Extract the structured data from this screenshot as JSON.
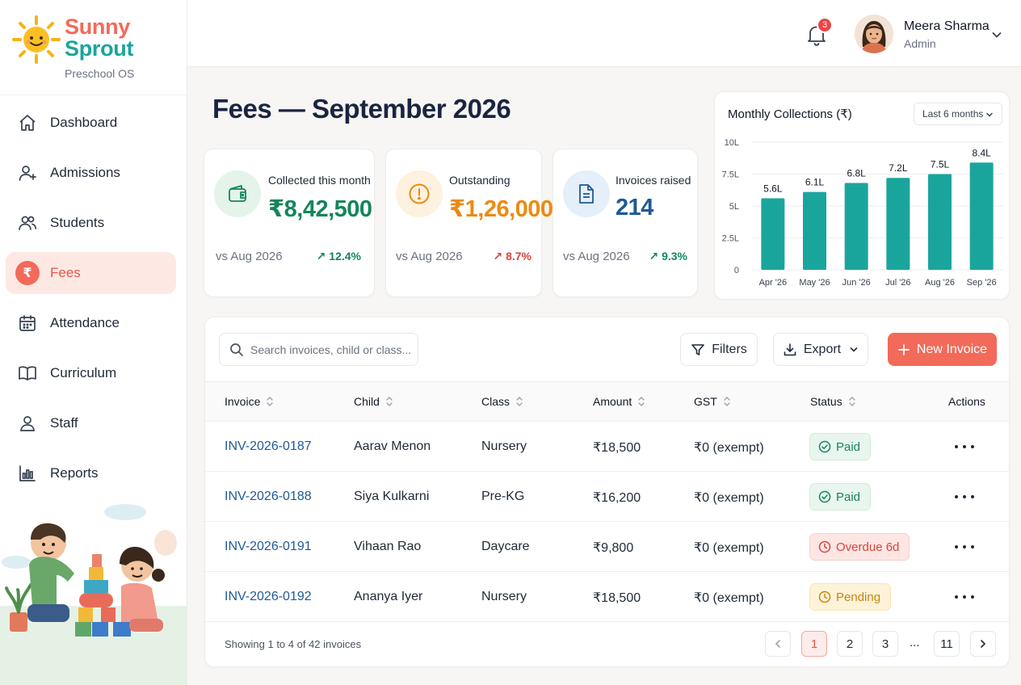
{
  "brand": {
    "name_line1": "Sunny",
    "name_line2": "Sprout",
    "subtitle": "Preschool OS"
  },
  "sidebar": {
    "items": [
      {
        "label": "Dashboard",
        "icon": "home-icon"
      },
      {
        "label": "Admissions",
        "icon": "user-plus-icon"
      },
      {
        "label": "Students",
        "icon": "users-icon"
      },
      {
        "label": "Fees",
        "icon": "rupee-icon",
        "active": true
      },
      {
        "label": "Attendance",
        "icon": "calendar-icon"
      },
      {
        "label": "Curriculum",
        "icon": "book-icon"
      },
      {
        "label": "Staff",
        "icon": "user-icon"
      },
      {
        "label": "Reports",
        "icon": "bar-chart-icon"
      }
    ]
  },
  "header": {
    "notification_count": "3",
    "user_name": "Meera Sharma",
    "user_role": "Admin"
  },
  "page": {
    "title": "Fees — September 2026"
  },
  "kpis": [
    {
      "label": "Collected this month",
      "value": "₹8,42,500",
      "vs": "vs Aug 2026",
      "delta": "12.4%",
      "direction": "up",
      "color": "#15855a",
      "icon": "wallet-icon"
    },
    {
      "label": "Outstanding",
      "value": "₹1,26,000",
      "vs": "vs Aug 2026",
      "delta": "8.7%",
      "direction": "up",
      "color": "#ec8a12",
      "icon": "alert-circle-icon"
    },
    {
      "label": "Invoices raised",
      "value": "214",
      "vs": "vs Aug 2026",
      "delta": "9.3%",
      "direction": "up",
      "color": "#1e5a96",
      "icon": "document-icon"
    }
  ],
  "chart_data": {
    "type": "bar",
    "title": "Monthly Collections (₹)",
    "range_select": "Last 6 months",
    "categories": [
      "Apr '26",
      "May '26",
      "Jun '26",
      "Jul '26",
      "Aug '26",
      "Sep '26"
    ],
    "values": [
      5.6,
      6.1,
      6.8,
      7.2,
      7.5,
      8.4
    ],
    "data_labels": [
      "5.6L",
      "6.1L",
      "6.8L",
      "7.2L",
      "7.5L",
      "8.4L"
    ],
    "y_ticks": [
      "0",
      "2.5L",
      "5L",
      "7.5L",
      "10L"
    ],
    "ylim": [
      0,
      10
    ],
    "bar_color": "#1aa59c",
    "grid": true
  },
  "table": {
    "search_placeholder": "Search invoices, child or class...",
    "filters_label": "Filters",
    "export_label": "Export",
    "new_invoice_label": "New Invoice",
    "columns": [
      "Invoice",
      "Child",
      "Class",
      "Amount",
      "GST",
      "Status",
      "Actions"
    ],
    "rows": [
      {
        "invoice": "INV-2026-0187",
        "child": "Aarav Menon",
        "class": "Nursery",
        "amount": "₹18,500",
        "gst": "₹0 (exempt)",
        "status": "Paid",
        "status_type": "paid"
      },
      {
        "invoice": "INV-2026-0188",
        "child": "Siya Kulkarni",
        "class": "Pre-KG",
        "amount": "₹16,200",
        "gst": "₹0 (exempt)",
        "status": "Paid",
        "status_type": "paid"
      },
      {
        "invoice": "INV-2026-0191",
        "child": "Vihaan Rao",
        "class": "Daycare",
        "amount": "₹9,800",
        "gst": "₹0 (exempt)",
        "status": "Overdue 6d",
        "status_type": "overdue"
      },
      {
        "invoice": "INV-2026-0192",
        "child": "Ananya Iyer",
        "class": "Nursery",
        "amount": "₹18,500",
        "gst": "₹0 (exempt)",
        "status": "Pending",
        "status_type": "pending"
      }
    ],
    "showing_text": "Showing 1 to 4 of 42 invoices",
    "pages": [
      "1",
      "2",
      "3",
      "11"
    ],
    "ellipsis": "...",
    "current_page": "1"
  },
  "colors": {
    "accent": "#f26a5a",
    "teal": "#1aa59c",
    "paid_bg": "#e8f6ee",
    "paid_fg": "#15855a",
    "overdue_bg": "#fde6e4",
    "overdue_fg": "#d9443a",
    "pending_bg": "#fef3d8",
    "pending_fg": "#c78510"
  }
}
